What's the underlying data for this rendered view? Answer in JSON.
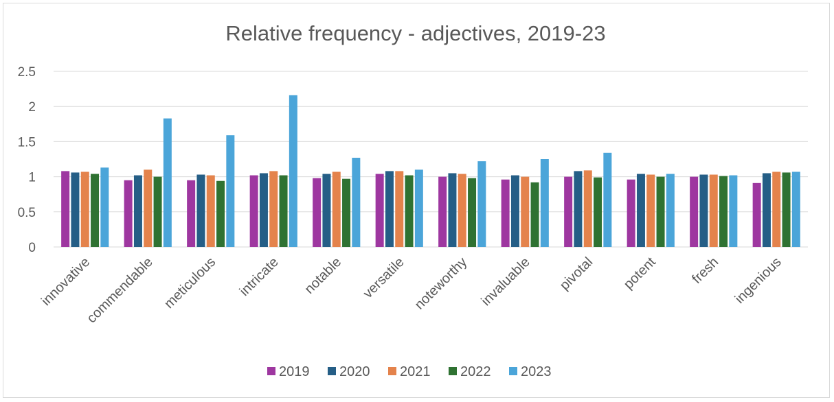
{
  "chart_data": {
    "type": "bar",
    "title": "Relative frequency - adjectives, 2019-23",
    "xlabel": "",
    "ylabel": "",
    "ylim": [
      0,
      2.5
    ],
    "yticks": [
      "0",
      "0.5",
      "1",
      "1.5",
      "2",
      "2.5"
    ],
    "grid": true,
    "legend_position": "bottom",
    "categories": [
      "innovative",
      "commendable",
      "meticulous",
      "intricate",
      "notable",
      "versatile",
      "noteworthy",
      "invaluable",
      "pivotal",
      "potent",
      "fresh",
      "ingenious"
    ],
    "series": [
      {
        "name": "2019",
        "color": "#9E37A0",
        "values": [
          1.08,
          0.95,
          0.95,
          1.02,
          0.98,
          1.04,
          1.0,
          0.96,
          1.0,
          0.96,
          1.0,
          0.91
        ]
      },
      {
        "name": "2020",
        "color": "#255E86",
        "values": [
          1.06,
          1.02,
          1.03,
          1.05,
          1.04,
          1.08,
          1.05,
          1.02,
          1.08,
          1.04,
          1.03,
          1.05
        ]
      },
      {
        "name": "2021",
        "color": "#E4834C",
        "values": [
          1.07,
          1.1,
          1.02,
          1.08,
          1.07,
          1.08,
          1.04,
          1.0,
          1.09,
          1.03,
          1.03,
          1.07
        ]
      },
      {
        "name": "2022",
        "color": "#2F7232",
        "values": [
          1.04,
          1.0,
          0.94,
          1.02,
          0.97,
          1.02,
          0.98,
          0.92,
          0.99,
          1.0,
          1.01,
          1.06
        ]
      },
      {
        "name": "2023",
        "color": "#4BA5D9",
        "values": [
          1.13,
          1.83,
          1.59,
          2.16,
          1.27,
          1.1,
          1.22,
          1.25,
          1.34,
          1.04,
          1.02,
          1.07
        ]
      }
    ]
  }
}
